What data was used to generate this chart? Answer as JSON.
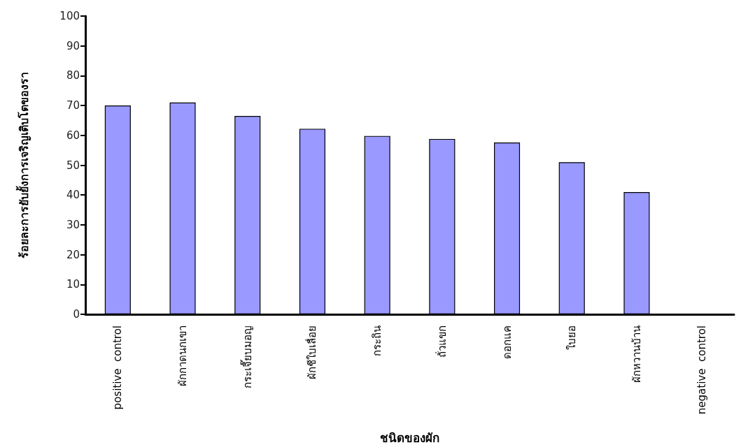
{
  "chart_data": {
    "type": "bar",
    "xlabel": "ชนิดของผัก",
    "ylabel": "ร้อยละการยับยั้งการเจริญเติบโตของรา",
    "categories": [
      "positive  control",
      "ผักกาดนกเขา",
      "กระเจี๊ยบมอญ",
      "ผักชีใบเลื่อย",
      "กระถิน",
      "ถั่วแขก",
      "ดอกแค",
      "ใบยอ",
      "ผักหวานบ้าน",
      "negative  control"
    ],
    "values": [
      70,
      71,
      66.5,
      62.2,
      59.8,
      58.8,
      57.6,
      51,
      41,
      0
    ],
    "color": "#9999ff",
    "ylim": [
      0,
      100
    ],
    "yticks": [
      0,
      10,
      20,
      30,
      40,
      50,
      60,
      70,
      80,
      90,
      100
    ],
    "grid": false
  }
}
